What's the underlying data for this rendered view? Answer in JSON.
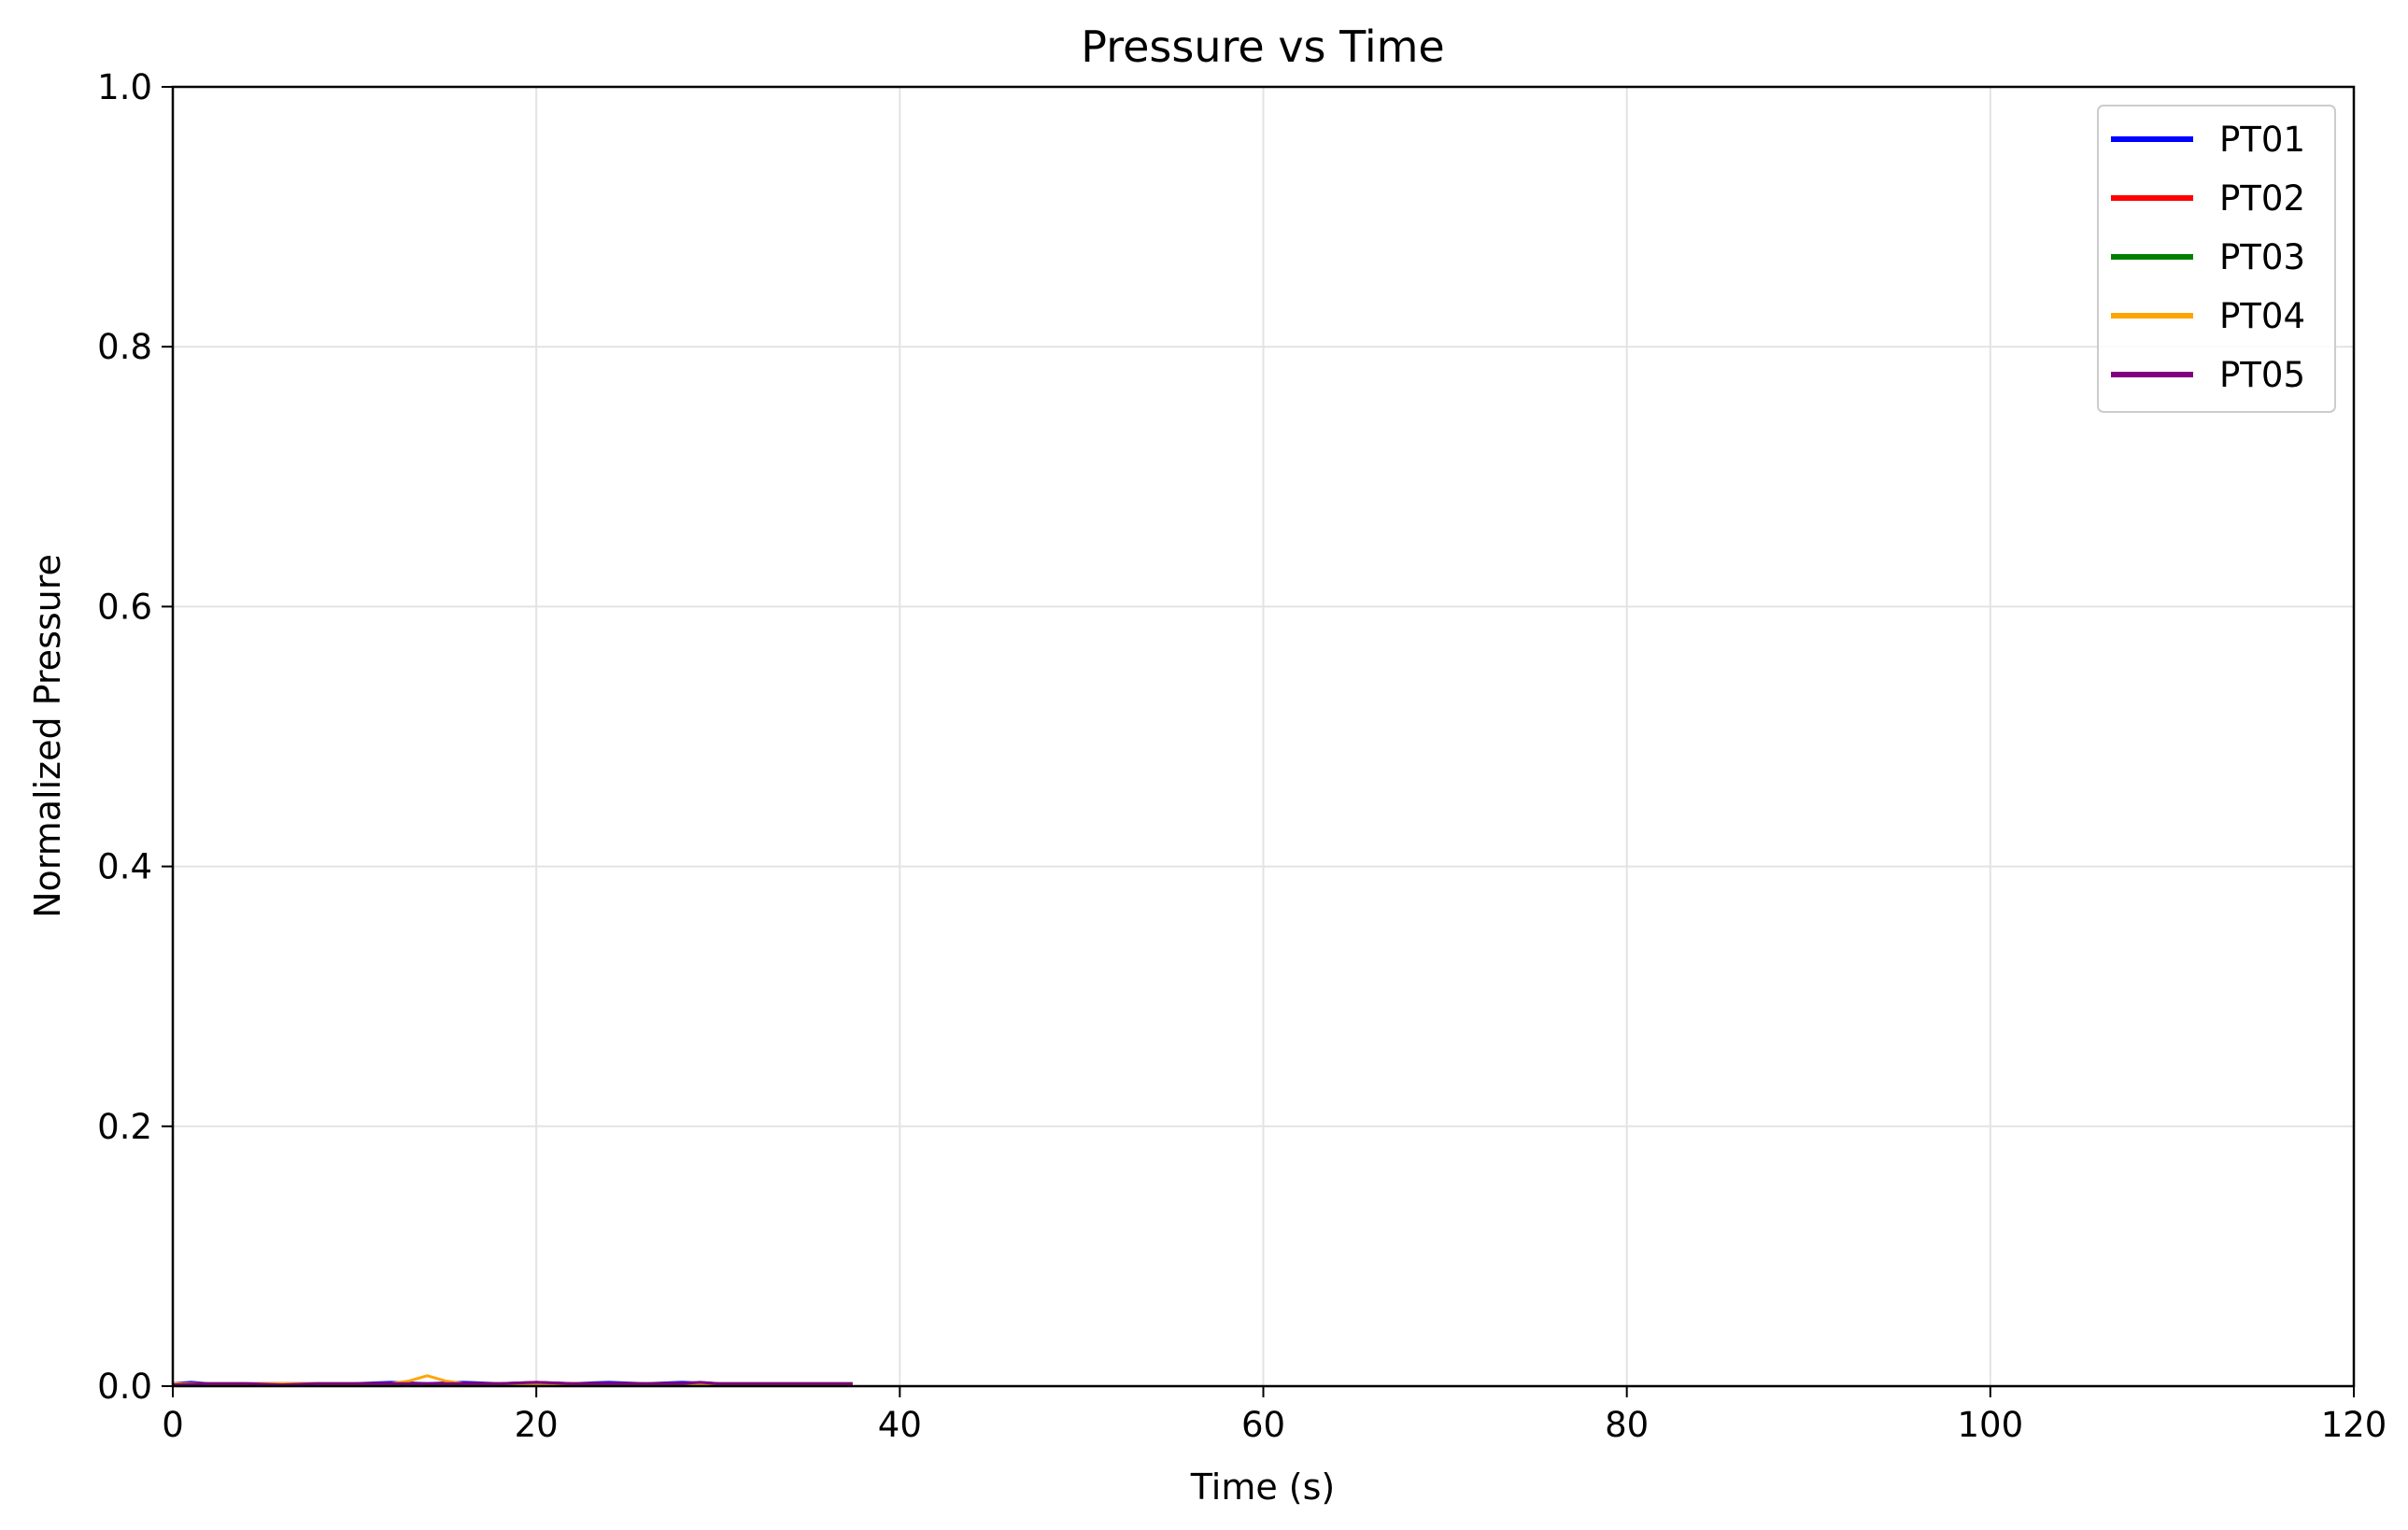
{
  "chart_data": {
    "type": "line",
    "title": "Pressure vs Time",
    "xlabel": "Time (s)",
    "ylabel": "Normalized Pressure",
    "xlim": [
      0,
      120
    ],
    "ylim": [
      0,
      1.0
    ],
    "xticks": [
      "0",
      "20",
      "40",
      "60",
      "80",
      "100",
      "120"
    ],
    "yticks": [
      "0.0",
      "0.2",
      "0.4",
      "0.6",
      "0.8",
      "1.0"
    ],
    "grid": true,
    "legend_position": "top-right",
    "series": [
      {
        "name": "PT01",
        "color": "#0000ff",
        "x": [
          0,
          1,
          2,
          4,
          6,
          8,
          10,
          12,
          14,
          16,
          18,
          20,
          22,
          24,
          26,
          28,
          30,
          32,
          34,
          36,
          37.4
        ],
        "y": [
          0.002,
          0.003,
          0.002,
          0.002,
          0.002,
          0.002,
          0.002,
          0.003,
          0.002,
          0.003,
          0.002,
          0.003,
          0.002,
          0.003,
          0.002,
          0.003,
          0.002,
          0.002,
          0.002,
          0.002,
          0.002
        ]
      },
      {
        "name": "PT02",
        "color": "#ff0000",
        "x": [
          0,
          5,
          10,
          15,
          20,
          25,
          30,
          37.4
        ],
        "y": [
          0.001,
          0.001,
          0.001,
          0.001,
          0.001,
          0.001,
          0.001,
          0.001
        ]
      },
      {
        "name": "PT03",
        "color": "#008000",
        "x": [
          0,
          5,
          10,
          15,
          20,
          25,
          30,
          37.4
        ],
        "y": [
          0.001,
          0.001,
          0.001,
          0.001,
          0.001,
          0.001,
          0.001,
          0.001
        ]
      },
      {
        "name": "PT04",
        "color": "#ffa500",
        "x": [
          0,
          4,
          8,
          12,
          13,
          14,
          15,
          16,
          20,
          24,
          28,
          32,
          37.4
        ],
        "y": [
          0.002,
          0.002,
          0.002,
          0.002,
          0.004,
          0.008,
          0.004,
          0.002,
          0.002,
          0.002,
          0.002,
          0.002,
          0.002
        ]
      },
      {
        "name": "PT05",
        "color": "#800080",
        "x": [
          0,
          2,
          4,
          6,
          8,
          10,
          12,
          16,
          18,
          20,
          22,
          24,
          26,
          28,
          29,
          30,
          32,
          34,
          37.4
        ],
        "y": [
          0.001,
          0.002,
          0.002,
          0.001,
          0.002,
          0.002,
          0.002,
          0.002,
          0.002,
          0.003,
          0.002,
          0.002,
          0.002,
          0.002,
          0.003,
          0.002,
          0.002,
          0.002,
          0.002
        ]
      }
    ]
  }
}
